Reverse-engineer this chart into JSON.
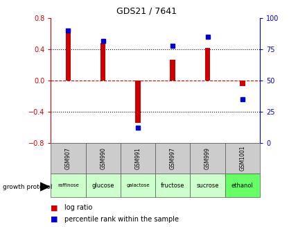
{
  "title": "GDS21 / 7641",
  "samples": [
    "GSM907",
    "GSM990",
    "GSM991",
    "GSM997",
    "GSM999",
    "GSM1001"
  ],
  "conditions": [
    "raffinose",
    "glucose",
    "galactose",
    "fructose",
    "sucrose",
    "ethanol"
  ],
  "log_ratios": [
    0.62,
    0.48,
    -0.54,
    0.27,
    0.42,
    -0.07
  ],
  "percentile_ranks": [
    90,
    82,
    12,
    78,
    85,
    35
  ],
  "ylim_left": [
    -0.8,
    0.8
  ],
  "ylim_right": [
    0,
    100
  ],
  "yticks_left": [
    -0.8,
    -0.4,
    0.0,
    0.4,
    0.8
  ],
  "yticks_right": [
    0,
    25,
    50,
    75,
    100
  ],
  "bar_color": "#cc0000",
  "dot_color": "#0000cc",
  "background_color": "#ffffff",
  "legend_log_ratio": "log ratio",
  "legend_percentile": "percentile rank within the sample",
  "growth_protocol_label": "growth protocol",
  "condition_colors": [
    "#ccffcc",
    "#ccffcc",
    "#ccffcc",
    "#ccffcc",
    "#ccffcc",
    "#66ff66"
  ],
  "gsm_bg_color": "#cccccc",
  "zero_line_color": "#cc0000",
  "dotted_line_color": "#000000",
  "title_color": "#000000",
  "left_axis_color": "#cc0000",
  "right_axis_color": "#0000cc",
  "bar_width": 0.15
}
